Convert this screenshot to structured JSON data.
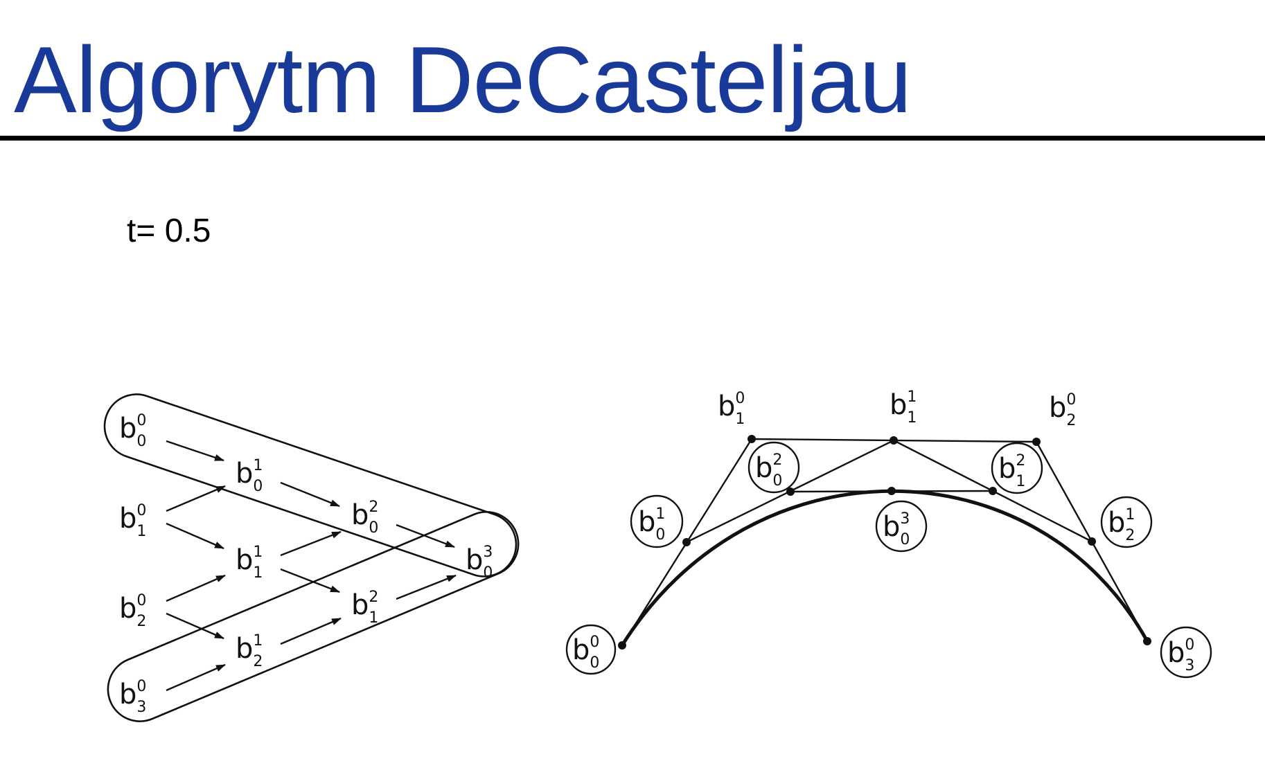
{
  "slide": {
    "title": "Algorytm DeCasteljau",
    "parameter": "t= 0.5"
  },
  "scheme": {
    "b00": {
      "base": "b",
      "sup": "0",
      "sub": "0"
    },
    "b10": {
      "base": "b",
      "sup": "0",
      "sub": "1"
    },
    "b20": {
      "base": "b",
      "sup": "0",
      "sub": "2"
    },
    "b30": {
      "base": "b",
      "sup": "0",
      "sub": "3"
    },
    "b01": {
      "base": "b",
      "sup": "1",
      "sub": "0"
    },
    "b11": {
      "base": "b",
      "sup": "1",
      "sub": "1"
    },
    "b21": {
      "base": "b",
      "sup": "1",
      "sub": "2"
    },
    "b02": {
      "base": "b",
      "sup": "2",
      "sub": "0"
    },
    "b12": {
      "base": "b",
      "sup": "2",
      "sub": "1"
    },
    "b03": {
      "base": "b",
      "sup": "3",
      "sub": "0"
    }
  },
  "curve_labels": {
    "b00": {
      "base": "b",
      "sup": "0",
      "sub": "0"
    },
    "b10": {
      "base": "b",
      "sup": "0",
      "sub": "1"
    },
    "b20": {
      "base": "b",
      "sup": "0",
      "sub": "2"
    },
    "b30": {
      "base": "b",
      "sup": "0",
      "sub": "3"
    },
    "b01": {
      "base": "b",
      "sup": "1",
      "sub": "0"
    },
    "b11": {
      "base": "b",
      "sup": "1",
      "sub": "1"
    },
    "b21": {
      "base": "b",
      "sup": "1",
      "sub": "2"
    },
    "b02": {
      "base": "b",
      "sup": "2",
      "sub": "0"
    },
    "b12": {
      "base": "b",
      "sup": "2",
      "sub": "1"
    },
    "b03": {
      "base": "b",
      "sup": "3",
      "sub": "0"
    }
  }
}
